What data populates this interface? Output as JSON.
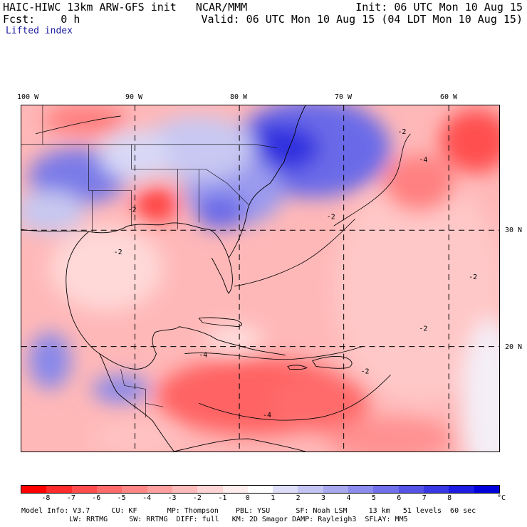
{
  "header": {
    "title": "HAIC-HIWC 13km ARW-GFS init   NCAR/MMM",
    "init": "Init: 06 UTC Mon 10 Aug 15",
    "fcst": "Fcst:    0 h",
    "valid": "Valid: 06 UTC Mon 10 Aug 15 (04 LDT Mon 10 Aug 15)",
    "field": "Lifted index"
  },
  "map": {
    "lon_labels": [
      "100 W",
      "90 W",
      "80 W",
      "70 W",
      "60 W"
    ],
    "lat_labels": [
      "30 N",
      "20 N"
    ],
    "contour_label": "-2",
    "contour_label_4": "-4"
  },
  "colorbar": {
    "colors": [
      "#ff0000",
      "#ff2a2a",
      "#ff4c4c",
      "#ff6a6a",
      "#ff8686",
      "#ffa0a0",
      "#ffbaba",
      "#ffd4d4",
      "#ffecec",
      "#ffffff",
      "#dedef8",
      "#c4c4f4",
      "#a8a8f0",
      "#8c8cee",
      "#7070ea",
      "#5454e6",
      "#3838e4",
      "#1c1ce2",
      "#0000dd"
    ],
    "tick_labels": [
      "-8",
      "-7",
      "-6",
      "-5",
      "-4",
      "-3",
      "-2",
      "-1",
      "0",
      "1",
      "2",
      "3",
      "4",
      "5",
      "6",
      "7",
      "8"
    ],
    "unit": "°C"
  },
  "model_info": {
    "line1": "Model Info: V3.7     CU: KF       MP: Thompson    PBL: YSU      SF: Noah LSM     13 km   51 levels  60 sec",
    "line2": "LW: RRTMG     SW: RRTMG  DIFF: full   KM: 2D Smagor DAMP: Rayleigh3  SFLAY: MM5"
  }
}
